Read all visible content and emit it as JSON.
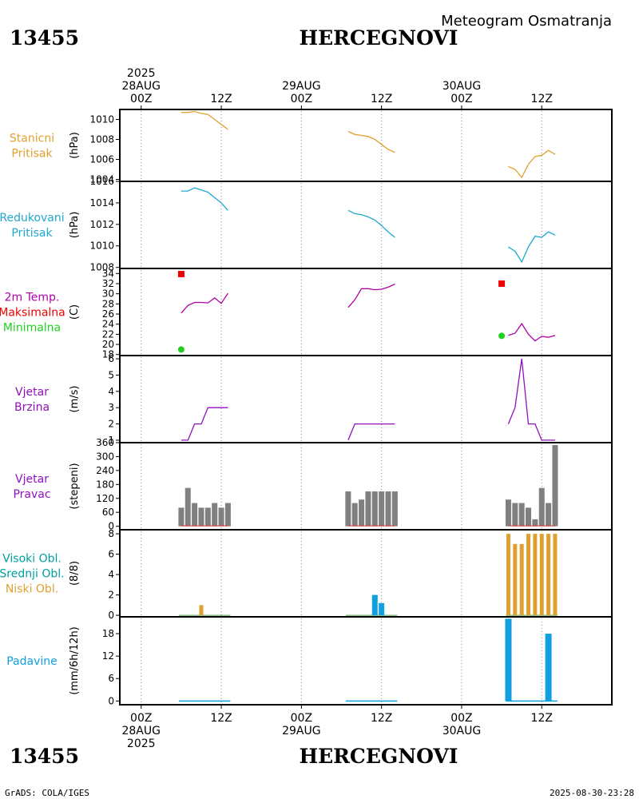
{
  "header": {
    "station_id": "13455",
    "station_name": "HERCEGNOVI",
    "subtitle": "Meteogram Osmatranja"
  },
  "footer": {
    "station_id": "13455",
    "station_name": "HERCEGNOVI",
    "credit": "GrADS: COLA/IGES",
    "timestamp": "2025-08-30-23:28"
  },
  "time_axis": {
    "top_labels": [
      {
        "t": 0,
        "lines": [
          "2025",
          "28AUG",
          "00Z"
        ]
      },
      {
        "t": 12,
        "lines": [
          "12Z"
        ]
      },
      {
        "t": 24,
        "lines": [
          "29AUG",
          "00Z"
        ]
      },
      {
        "t": 36,
        "lines": [
          "12Z"
        ]
      },
      {
        "t": 48,
        "lines": [
          "30AUG",
          "00Z"
        ]
      },
      {
        "t": 60,
        "lines": [
          "12Z"
        ]
      }
    ],
    "bottom_labels": [
      {
        "t": 0,
        "lines": [
          "00Z",
          "28AUG",
          "2025"
        ]
      },
      {
        "t": 12,
        "lines": [
          "12Z"
        ]
      },
      {
        "t": 24,
        "lines": [
          "00Z",
          "29AUG"
        ]
      },
      {
        "t": 36,
        "lines": [
          "12Z"
        ]
      },
      {
        "t": 48,
        "lines": [
          "00Z",
          "30AUG"
        ]
      },
      {
        "t": 60,
        "lines": [
          "12Z"
        ]
      }
    ],
    "range_hours": [
      -3.2,
      70.5
    ]
  },
  "colors": {
    "pressure": "#e0a030",
    "reduced": "#20a8d0",
    "temp_line": "#b000a8",
    "tmax": "#f00000",
    "tmin": "#20d020",
    "wind_speed": "#9010c0",
    "wind_dir_bar": "#808080",
    "wind_dir_base": "#e03030",
    "cloud_low": "#e0a030",
    "cloud_high": "#00a0a0",
    "precip": "#10a0e0",
    "label_purple": "#9010c0"
  },
  "chart_data": [
    {
      "id": "pressure",
      "type": "line",
      "labels": [
        {
          "text": "Stanicni",
          "color": "#e0a030"
        },
        {
          "text": "Pritisak",
          "color": "#e0a030"
        }
      ],
      "ylabel": "(hPa)",
      "ylim": [
        1003.8,
        1011.0
      ],
      "yticks": [
        1004,
        1006,
        1008,
        1010
      ],
      "series": [
        {
          "name": "Stanicni pritisak",
          "color": "#e0a030",
          "segments": [
            [
              [
                6,
                1010.7
              ],
              [
                7,
                1010.7
              ],
              [
                8,
                1010.8
              ],
              [
                9,
                1010.6
              ],
              [
                10,
                1010.5
              ],
              [
                11,
                1010.0
              ],
              [
                12,
                1009.5
              ],
              [
                13,
                1009.0
              ]
            ],
            [
              [
                31,
                1008.8
              ],
              [
                32,
                1008.5
              ],
              [
                33,
                1008.4
              ],
              [
                34,
                1008.3
              ],
              [
                35,
                1008.0
              ],
              [
                36,
                1007.5
              ],
              [
                37,
                1007.0
              ],
              [
                38,
                1006.7
              ]
            ],
            [
              [
                55,
                1005.3
              ],
              [
                56,
                1005.0
              ],
              [
                57,
                1004.2
              ],
              [
                58,
                1005.5
              ],
              [
                59,
                1006.3
              ],
              [
                60,
                1006.4
              ],
              [
                61,
                1006.9
              ],
              [
                62,
                1006.5
              ]
            ]
          ]
        }
      ]
    },
    {
      "id": "reduced_pressure",
      "type": "line",
      "labels": [
        {
          "text": "Redukovani",
          "color": "#20a8d0"
        },
        {
          "text": "Pritisak",
          "color": "#20a8d0"
        }
      ],
      "ylabel": "(hPa)",
      "ylim": [
        1007.9,
        1016.0
      ],
      "yticks": [
        1008,
        1010,
        1012,
        1014,
        1016
      ],
      "series": [
        {
          "name": "Redukovani pritisak",
          "color": "#20a8d0",
          "segments": [
            [
              [
                6,
                1015.1
              ],
              [
                7,
                1015.1
              ],
              [
                8,
                1015.4
              ],
              [
                9,
                1015.2
              ],
              [
                10,
                1015.0
              ],
              [
                11,
                1014.5
              ],
              [
                12,
                1014.0
              ],
              [
                13,
                1013.3
              ]
            ],
            [
              [
                31,
                1013.3
              ],
              [
                32,
                1013.0
              ],
              [
                33,
                1012.9
              ],
              [
                34,
                1012.7
              ],
              [
                35,
                1012.4
              ],
              [
                36,
                1011.9
              ],
              [
                37,
                1011.3
              ],
              [
                38,
                1010.8
              ]
            ],
            [
              [
                55,
                1009.9
              ],
              [
                56,
                1009.5
              ],
              [
                57,
                1008.5
              ],
              [
                58,
                1009.9
              ],
              [
                59,
                1010.9
              ],
              [
                60,
                1010.8
              ],
              [
                61,
                1011.3
              ],
              [
                62,
                1011.0
              ]
            ]
          ]
        }
      ]
    },
    {
      "id": "temperature",
      "type": "line",
      "labels": [
        {
          "text": "2m Temp.",
          "color": "#b000a8"
        },
        {
          "text": "Maksimalna",
          "color": "#f00000"
        },
        {
          "text": "Minimalna",
          "color": "#20d020"
        }
      ],
      "ylabel": "(C)",
      "ylim": [
        17.8,
        35.0
      ],
      "yticks": [
        18,
        20,
        22,
        24,
        26,
        28,
        30,
        32,
        34
      ],
      "series": [
        {
          "name": "2m temperatura",
          "color": "#b000a8",
          "segments": [
            [
              [
                6,
                26.2
              ],
              [
                7,
                27.7
              ],
              [
                8,
                28.3
              ],
              [
                9,
                28.3
              ],
              [
                10,
                28.2
              ],
              [
                11,
                29.2
              ],
              [
                12,
                28.1
              ],
              [
                13,
                30.1
              ]
            ],
            [
              [
                31,
                27.3
              ],
              [
                32,
                28.8
              ],
              [
                33,
                31.0
              ],
              [
                34,
                31.0
              ],
              [
                35,
                30.8
              ],
              [
                36,
                30.9
              ],
              [
                37,
                31.3
              ],
              [
                38,
                31.9
              ]
            ],
            [
              [
                55,
                21.8
              ],
              [
                56,
                22.2
              ],
              [
                57,
                24.1
              ],
              [
                58,
                22.0
              ],
              [
                59,
                20.7
              ],
              [
                60,
                21.6
              ],
              [
                61,
                21.4
              ],
              [
                62,
                21.8
              ]
            ]
          ]
        }
      ],
      "markers": [
        {
          "name": "Maksimalna",
          "shape": "square",
          "color": "#f00000",
          "points": [
            [
              6,
              33.9
            ],
            [
              54,
              32.0
            ]
          ]
        },
        {
          "name": "Minimalna",
          "shape": "circle",
          "color": "#20d020",
          "points": [
            [
              6,
              19.0
            ],
            [
              54,
              21.7
            ]
          ]
        }
      ]
    },
    {
      "id": "wind_speed",
      "type": "line",
      "labels": [
        {
          "text": "Vjetar",
          "color": "#9010c0"
        },
        {
          "text": "Brzina",
          "color": "#9010c0"
        }
      ],
      "ylabel": "(m/s)",
      "ylim": [
        0.85,
        6.2
      ],
      "yticks": [
        1,
        2,
        3,
        4,
        5,
        6
      ],
      "series": [
        {
          "name": "Brzina vjetra",
          "color": "#9010c0",
          "segments": [
            [
              [
                6,
                1
              ],
              [
                7,
                1
              ],
              [
                8,
                2
              ],
              [
                9,
                2
              ],
              [
                10,
                3
              ],
              [
                11,
                3
              ],
              [
                12,
                3
              ],
              [
                13,
                3
              ]
            ],
            [
              [
                31,
                1
              ],
              [
                32,
                2
              ],
              [
                33,
                2
              ],
              [
                34,
                2
              ],
              [
                35,
                2
              ],
              [
                36,
                2
              ],
              [
                37,
                2
              ],
              [
                38,
                2
              ]
            ],
            [
              [
                55,
                2
              ],
              [
                56,
                3
              ],
              [
                57,
                6
              ],
              [
                58,
                2
              ],
              [
                59,
                2
              ],
              [
                60,
                1
              ],
              [
                61,
                1
              ],
              [
                62,
                1
              ]
            ]
          ]
        }
      ]
    },
    {
      "id": "wind_direction",
      "type": "bar",
      "labels": [
        {
          "text": "Vjetar",
          "color": "#9010c0"
        },
        {
          "text": "Pravac",
          "color": "#9010c0"
        }
      ],
      "ylabel": "(stepeni)",
      "ylim": [
        -15,
        360
      ],
      "yticks": [
        0,
        60,
        120,
        180,
        240,
        300,
        360
      ],
      "series": [
        {
          "name": "Pravac vjetra",
          "color": "#808080",
          "points": [
            [
              6,
              80
            ],
            [
              7,
              165
            ],
            [
              8,
              100
            ],
            [
              9,
              80
            ],
            [
              10,
              80
            ],
            [
              11,
              100
            ],
            [
              12,
              80
            ],
            [
              13,
              100
            ],
            [
              31,
              150
            ],
            [
              32,
              100
            ],
            [
              33,
              115
            ],
            [
              34,
              150
            ],
            [
              35,
              150
            ],
            [
              36,
              150
            ],
            [
              37,
              150
            ],
            [
              38,
              150
            ],
            [
              55,
              115
            ],
            [
              56,
              100
            ],
            [
              57,
              100
            ],
            [
              58,
              80
            ],
            [
              59,
              30
            ],
            [
              60,
              165
            ],
            [
              61,
              100
            ],
            [
              62,
              350
            ]
          ]
        }
      ]
    },
    {
      "id": "clouds",
      "type": "bar",
      "labels": [
        {
          "text": "Visoki Obl.",
          "color": "#00a0a0"
        },
        {
          "text": "Srednji Obl.",
          "color": "#00a0a0"
        },
        {
          "text": "Niski Obl.",
          "color": "#e0a030"
        }
      ],
      "ylabel": "(8/8)",
      "ylim": [
        -0.15,
        8.4
      ],
      "yticks": [
        0,
        2,
        4,
        6,
        8
      ],
      "series": [
        {
          "name": "Niski oblaci",
          "color": "#e0a030",
          "points": [
            [
              6,
              0
            ],
            [
              7,
              0
            ],
            [
              8,
              0
            ],
            [
              9,
              1
            ],
            [
              10,
              0
            ],
            [
              11,
              0
            ],
            [
              12,
              0
            ],
            [
              13,
              0
            ],
            [
              31,
              0
            ],
            [
              32,
              0
            ],
            [
              33,
              0
            ],
            [
              34,
              0
            ],
            [
              35,
              0
            ],
            [
              36,
              0
            ],
            [
              37,
              0
            ],
            [
              38,
              0
            ],
            [
              55,
              8
            ],
            [
              56,
              7
            ],
            [
              57,
              7
            ],
            [
              58,
              8
            ],
            [
              59,
              8
            ],
            [
              60,
              8
            ],
            [
              61,
              8
            ],
            [
              62,
              8
            ]
          ]
        },
        {
          "name": "Srednji oblaci",
          "color": "#10a0e0",
          "points": [
            [
              35,
              2
            ],
            [
              36,
              1.2
            ]
          ]
        }
      ]
    },
    {
      "id": "precipitation",
      "type": "bar",
      "labels": [
        {
          "text": "Padavine",
          "color": "#10a0e0"
        }
      ],
      "ylabel": "(mm/6h/12h)",
      "ylim": [
        -1,
        22.5
      ],
      "yticks": [
        0,
        6,
        12,
        18
      ],
      "series": [
        {
          "name": "Padavine",
          "color": "#10a0e0",
          "points": [
            [
              6,
              0
            ],
            [
              7,
              0
            ],
            [
              8,
              0
            ],
            [
              9,
              0
            ],
            [
              10,
              0
            ],
            [
              11,
              0
            ],
            [
              12,
              0
            ],
            [
              13,
              0
            ],
            [
              31,
              0
            ],
            [
              32,
              0
            ],
            [
              33,
              0
            ],
            [
              34,
              0
            ],
            [
              35,
              0
            ],
            [
              36,
              0
            ],
            [
              37,
              0
            ],
            [
              38,
              0
            ],
            [
              55,
              22
            ],
            [
              56,
              0
            ],
            [
              57,
              0
            ],
            [
              58,
              0
            ],
            [
              59,
              0
            ],
            [
              60,
              0
            ],
            [
              61,
              18
            ],
            [
              62,
              0
            ]
          ]
        }
      ]
    }
  ]
}
